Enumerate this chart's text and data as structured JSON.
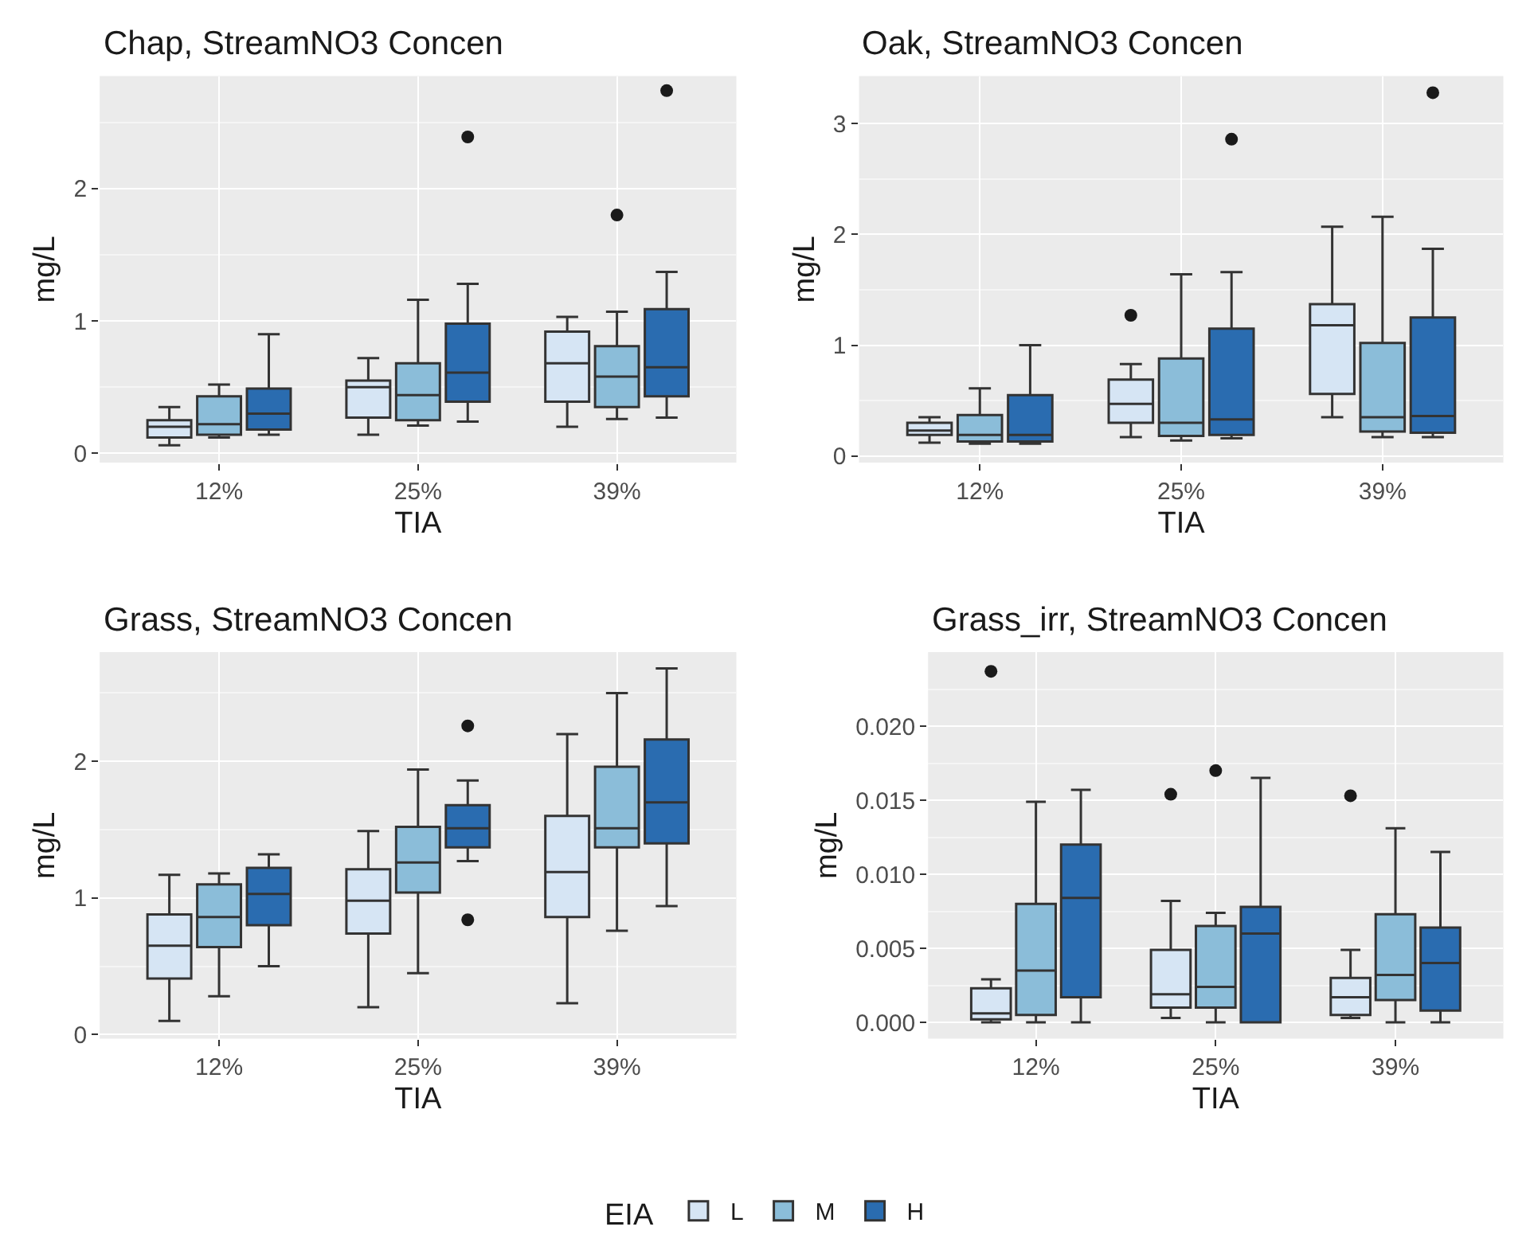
{
  "chart_data": [
    {
      "type": "box",
      "title": "Chap, StreamNO3 Concen",
      "xlabel": "TIA",
      "ylabel": "mg/L",
      "legend_title": "EIA",
      "legend": "bottom",
      "grid": true,
      "categories": [
        "12%",
        "25%",
        "39%"
      ],
      "ylim": [
        -0.07,
        2.85
      ],
      "yticks": [
        0,
        1,
        2
      ],
      "series": [
        {
          "name": "L",
          "color": "#d6e5f4",
          "boxes": [
            {
              "low": 0.06,
              "q1": 0.12,
              "median": 0.2,
              "q3": 0.25,
              "high": 0.35
            },
            {
              "low": 0.14,
              "q1": 0.27,
              "median": 0.5,
              "q3": 0.55,
              "high": 0.72
            },
            {
              "low": 0.2,
              "q1": 0.39,
              "median": 0.68,
              "q3": 0.92,
              "high": 1.03
            }
          ]
        },
        {
          "name": "M",
          "color": "#8bbdd9",
          "boxes": [
            {
              "low": 0.12,
              "q1": 0.14,
              "median": 0.22,
              "q3": 0.43,
              "high": 0.52
            },
            {
              "low": 0.21,
              "q1": 0.25,
              "median": 0.44,
              "q3": 0.68,
              "high": 1.16
            },
            {
              "low": 0.26,
              "q1": 0.35,
              "median": 0.58,
              "q3": 0.81,
              "high": 1.07,
              "outliers": [
                1.8
              ]
            }
          ]
        },
        {
          "name": "H",
          "color": "#2a6cb0",
          "boxes": [
            {
              "low": 0.14,
              "q1": 0.18,
              "median": 0.3,
              "q3": 0.49,
              "high": 0.9
            },
            {
              "low": 0.24,
              "q1": 0.39,
              "median": 0.61,
              "q3": 0.98,
              "high": 1.28,
              "outliers": [
                2.39
              ]
            },
            {
              "low": 0.27,
              "q1": 0.43,
              "median": 0.65,
              "q3": 1.09,
              "high": 1.37,
              "outliers": [
                2.74
              ]
            }
          ]
        }
      ]
    },
    {
      "type": "box",
      "title": "Oak, StreamNO3 Concen",
      "xlabel": "TIA",
      "ylabel": "mg/L",
      "grid": true,
      "categories": [
        "12%",
        "25%",
        "39%"
      ],
      "ylim": [
        -0.06,
        3.43
      ],
      "yticks": [
        0,
        1,
        2,
        3
      ],
      "series": [
        {
          "color": "#d6e5f4",
          "boxes": [
            {
              "low": 0.12,
              "q1": 0.19,
              "median": 0.23,
              "q3": 0.3,
              "high": 0.35
            },
            {
              "low": 0.17,
              "q1": 0.3,
              "median": 0.47,
              "q3": 0.69,
              "high": 0.83,
              "outliers": [
                1.27
              ]
            },
            {
              "low": 0.35,
              "q1": 0.56,
              "median": 1.18,
              "q3": 1.37,
              "high": 2.07
            }
          ]
        },
        {
          "color": "#8bbdd9",
          "boxes": [
            {
              "low": 0.11,
              "q1": 0.13,
              "median": 0.19,
              "q3": 0.37,
              "high": 0.61
            },
            {
              "low": 0.14,
              "q1": 0.18,
              "median": 0.3,
              "q3": 0.88,
              "high": 1.64
            },
            {
              "low": 0.17,
              "q1": 0.22,
              "median": 0.35,
              "q3": 1.02,
              "high": 2.16
            }
          ]
        },
        {
          "color": "#2a6cb0",
          "boxes": [
            {
              "low": 0.11,
              "q1": 0.13,
              "median": 0.19,
              "q3": 0.55,
              "high": 1.0
            },
            {
              "low": 0.16,
              "q1": 0.19,
              "median": 0.33,
              "q3": 1.15,
              "high": 1.66,
              "outliers": [
                2.86
              ]
            },
            {
              "low": 0.17,
              "q1": 0.21,
              "median": 0.36,
              "q3": 1.25,
              "high": 1.87,
              "outliers": [
                3.28
              ]
            }
          ]
        }
      ]
    },
    {
      "type": "box",
      "title": "Grass, StreamNO3 Concen",
      "xlabel": "TIA",
      "ylabel": "mg/L",
      "grid": true,
      "categories": [
        "12%",
        "25%",
        "39%"
      ],
      "ylim": [
        -0.03,
        2.8
      ],
      "yticks": [
        0,
        1,
        2
      ],
      "series": [
        {
          "color": "#d6e5f4",
          "boxes": [
            {
              "low": 0.1,
              "q1": 0.41,
              "median": 0.65,
              "q3": 0.88,
              "high": 1.17
            },
            {
              "low": 0.2,
              "q1": 0.74,
              "median": 0.98,
              "q3": 1.21,
              "high": 1.49
            },
            {
              "low": 0.23,
              "q1": 0.86,
              "median": 1.19,
              "q3": 1.6,
              "high": 2.2
            }
          ]
        },
        {
          "color": "#8bbdd9",
          "boxes": [
            {
              "low": 0.28,
              "q1": 0.64,
              "median": 0.86,
              "q3": 1.1,
              "high": 1.18
            },
            {
              "low": 0.45,
              "q1": 1.04,
              "median": 1.26,
              "q3": 1.52,
              "high": 1.94
            },
            {
              "low": 0.76,
              "q1": 1.37,
              "median": 1.51,
              "q3": 1.96,
              "high": 2.5
            }
          ]
        },
        {
          "color": "#2a6cb0",
          "boxes": [
            {
              "low": 0.5,
              "q1": 0.8,
              "median": 1.03,
              "q3": 1.22,
              "high": 1.32
            },
            {
              "low": 1.27,
              "q1": 1.37,
              "median": 1.51,
              "q3": 1.68,
              "high": 1.86,
              "outliers": [
                2.26,
                0.84
              ]
            },
            {
              "low": 0.94,
              "q1": 1.4,
              "median": 1.7,
              "q3": 2.16,
              "high": 2.68
            }
          ]
        }
      ]
    },
    {
      "type": "box",
      "title": "Grass_irr, StreamNO3 Concen",
      "xlabel": "TIA",
      "ylabel": "mg/L",
      "grid": true,
      "categories": [
        "12%",
        "25%",
        "39%"
      ],
      "ylim": [
        -0.0011,
        0.025
      ],
      "yticks": [
        {
          "value": 0,
          "label": "0.000"
        },
        {
          "value": 0.005,
          "label": "0.005"
        },
        {
          "value": 0.01,
          "label": "0.010"
        },
        {
          "value": 0.015,
          "label": "0.015"
        },
        {
          "value": 0.02,
          "label": "0.020"
        }
      ],
      "series": [
        {
          "color": "#d6e5f4",
          "boxes": [
            {
              "low": 0.0,
              "q1": 0.0002,
              "median": 0.0006,
              "q3": 0.0023,
              "high": 0.0029,
              "outliers": [
                0.0237
              ]
            },
            {
              "low": 0.0003,
              "q1": 0.001,
              "median": 0.0019,
              "q3": 0.0049,
              "high": 0.0082,
              "outliers": [
                0.0154
              ]
            },
            {
              "low": 0.0003,
              "q1": 0.0005,
              "median": 0.0017,
              "q3": 0.003,
              "high": 0.0049,
              "outliers": [
                0.0153
              ]
            }
          ]
        },
        {
          "color": "#8bbdd9",
          "boxes": [
            {
              "low": 0.0,
              "q1": 0.0005,
              "median": 0.0035,
              "q3": 0.008,
              "high": 0.0149
            },
            {
              "low": 0.0,
              "q1": 0.001,
              "median": 0.0024,
              "q3": 0.0065,
              "high": 0.0074,
              "outliers": [
                0.017
              ]
            },
            {
              "low": 0.0,
              "q1": 0.0015,
              "median": 0.0032,
              "q3": 0.0073,
              "high": 0.0131
            }
          ]
        },
        {
          "color": "#2a6cb0",
          "boxes": [
            {
              "low": 0.0,
              "q1": 0.0017,
              "median": 0.0084,
              "q3": 0.012,
              "high": 0.0157
            },
            {
              "low": 0.0,
              "q1": 0.0,
              "median": 0.006,
              "q3": 0.0078,
              "high": 0.0165
            },
            {
              "low": 0.0,
              "q1": 0.0008,
              "median": 0.004,
              "q3": 0.0064,
              "high": 0.0115
            }
          ]
        }
      ]
    }
  ]
}
